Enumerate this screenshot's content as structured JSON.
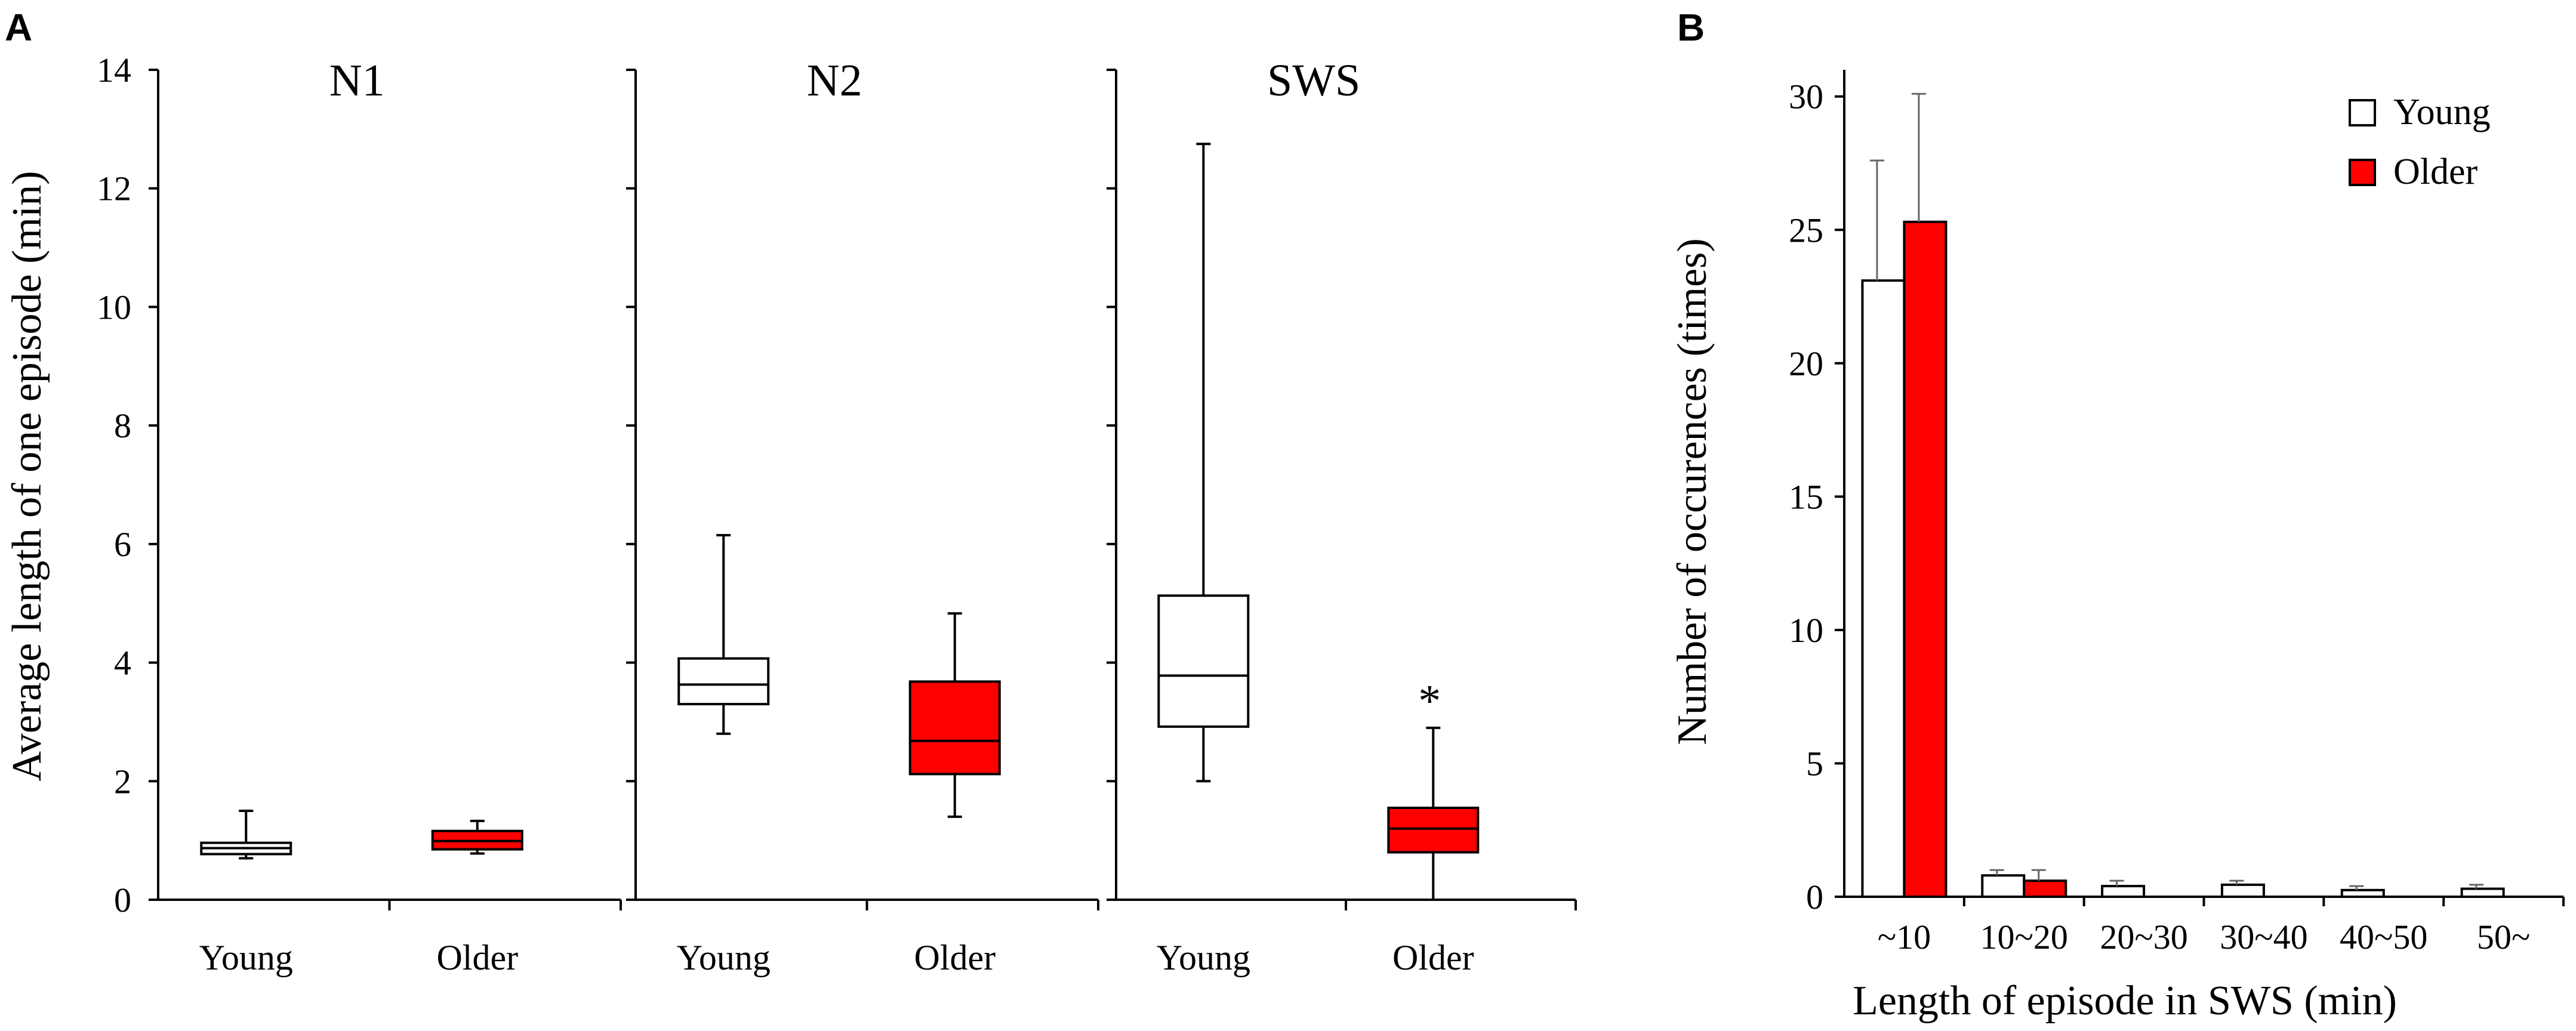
{
  "panel_labels": {
    "a": "A",
    "b": "B"
  },
  "colors": {
    "young_fill": "#ffffff",
    "older_fill": "#ff0000",
    "stroke": "#000000"
  },
  "chart_data": [
    {
      "type": "box",
      "id": "A",
      "ylabel": "Average length of one episode (min)",
      "ylim": [
        0,
        14
      ],
      "yticks": [
        0,
        2,
        4,
        6,
        8,
        10,
        12,
        14
      ],
      "categories": [
        "Young",
        "Older"
      ],
      "panels": [
        {
          "title": "N1",
          "boxes": [
            {
              "group": "Young",
              "whisker_low": 0.7,
              "q1": 0.77,
              "median": 0.87,
              "q3": 0.96,
              "whisker_high": 1.5
            },
            {
              "group": "Older",
              "whisker_low": 0.78,
              "q1": 0.85,
              "median": 0.99,
              "q3": 1.16,
              "whisker_high": 1.33
            }
          ]
        },
        {
          "title": "N2",
          "boxes": [
            {
              "group": "Young",
              "whisker_low": 2.8,
              "q1": 3.3,
              "median": 3.63,
              "q3": 4.07,
              "whisker_high": 6.15
            },
            {
              "group": "Older",
              "whisker_low": 1.4,
              "q1": 2.12,
              "median": 2.68,
              "q3": 3.68,
              "whisker_high": 4.83
            }
          ]
        },
        {
          "title": "SWS",
          "boxes": [
            {
              "group": "Young",
              "whisker_low": 2.0,
              "q1": 2.92,
              "median": 3.78,
              "q3": 5.13,
              "whisker_high": 12.75
            },
            {
              "group": "Older",
              "whisker_low": 0.0,
              "q1": 0.8,
              "median": 1.2,
              "q3": 1.55,
              "whisker_high": 2.9,
              "annotation": "*"
            }
          ]
        }
      ]
    },
    {
      "type": "bar",
      "id": "B",
      "xlabel": "Length of episode in SWS (min)",
      "ylabel": "Number of occurences (times)",
      "ylim": [
        0,
        31
      ],
      "yticks": [
        0,
        5,
        10,
        15,
        20,
        25,
        30
      ],
      "categories": [
        "~10",
        "10~20",
        "20~30",
        "30~40",
        "40~50",
        "50~"
      ],
      "series": [
        {
          "name": "Young",
          "values": [
            23.1,
            0.8,
            0.4,
            0.45,
            0.25,
            0.3
          ],
          "errors": [
            4.5,
            0.2,
            0.2,
            0.15,
            0.15,
            0.15
          ]
        },
        {
          "name": "Older",
          "values": [
            25.3,
            0.6,
            0,
            0,
            0,
            0
          ],
          "errors": [
            4.8,
            0.4,
            0,
            0,
            0,
            0
          ]
        }
      ],
      "legend": "top-right"
    }
  ]
}
